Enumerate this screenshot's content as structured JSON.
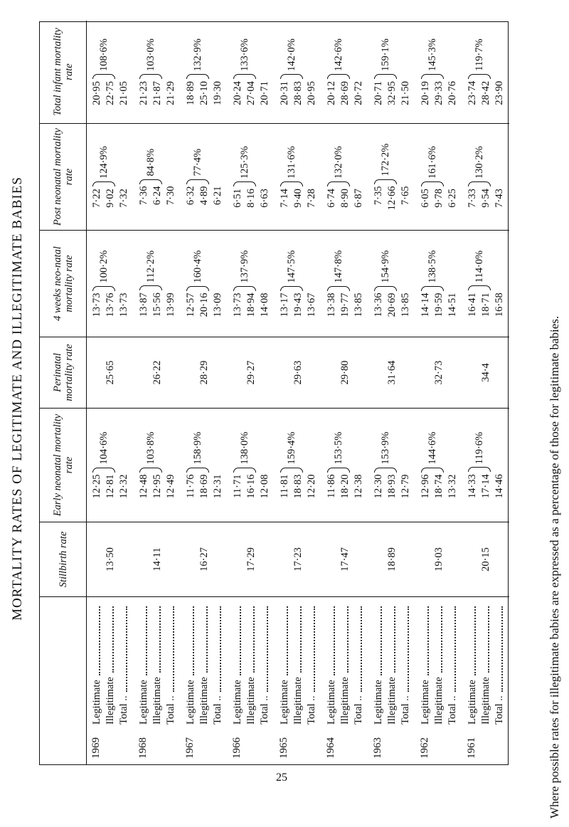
{
  "title": "MORTALITY RATES OF LEGITIMATE AND ILLEGITIMATE BABIES",
  "note": "Where possible rates for illegitimate babies are expressed as a percentage of those for legitimate babies.",
  "page_number": "25",
  "table": {
    "headers": [
      "Stillbirth rate",
      "Early neonatal mortality rate",
      "Perinatal mortality rate",
      "4 weeks neo-natal mortality rate",
      "Post neonatal mortality rate",
      "Total infant mortality rate"
    ],
    "rows": [
      {
        "year": "1969",
        "labels": [
          "Legitimate",
          "Illegitimate",
          "Total .."
        ],
        "stillbirth": "13·50",
        "early": {
          "values": [
            "12·25",
            "12·81",
            "12·32"
          ],
          "pct": "104·6%"
        },
        "perinatal": "25·65",
        "four_weeks": {
          "values": [
            "13·73",
            "13·76",
            "13·73"
          ],
          "pct": "100·2%"
        },
        "post": {
          "values": [
            "7·22",
            "9·02",
            "7·32"
          ],
          "pct": "124·9%"
        },
        "infant": {
          "values": [
            "20·95",
            "22·75",
            "21·05"
          ],
          "pct": "108·6%"
        }
      },
      {
        "year": "1968",
        "labels": [
          "Legitimate",
          "Illegitimate",
          "Total .."
        ],
        "stillbirth": "14·11",
        "early": {
          "values": [
            "12·48",
            "12·95",
            "12·49"
          ],
          "pct": "103·8%"
        },
        "perinatal": "26·22",
        "four_weeks": {
          "values": [
            "13·87",
            "15·56",
            "13·99"
          ],
          "pct": "112·2%"
        },
        "post": {
          "values": [
            "7·36",
            "6·24",
            "7·30"
          ],
          "pct": "84·8%"
        },
        "infant": {
          "values": [
            "21·23",
            "21·87",
            "21·29"
          ],
          "pct": "103·0%"
        }
      },
      {
        "year": "1967",
        "labels": [
          "Legitimate",
          "Illegitimate",
          "Total .."
        ],
        "stillbirth": "16·27",
        "early": {
          "values": [
            "11·76",
            "18·69",
            "12·31"
          ],
          "pct": "158·9%"
        },
        "perinatal": "28·29",
        "four_weeks": {
          "values": [
            "12·57",
            "20·16",
            "13·09"
          ],
          "pct": "160·4%"
        },
        "post": {
          "values": [
            "6·32",
            "4·89",
            "6·21"
          ],
          "pct": "77·4%"
        },
        "infant": {
          "values": [
            "18·89",
            "25·10",
            "19·30"
          ],
          "pct": "132·9%"
        }
      },
      {
        "year": "1966",
        "labels": [
          "Legitimate",
          "Illegitimate",
          "Total .."
        ],
        "stillbirth": "17·29",
        "early": {
          "values": [
            "11·71",
            "16·16",
            "12·08"
          ],
          "pct": "138·0%"
        },
        "perinatal": "29·27",
        "four_weeks": {
          "values": [
            "13·73",
            "18·94",
            "14·08"
          ],
          "pct": "137·9%"
        },
        "post": {
          "values": [
            "6·51",
            "8·16",
            "6·63"
          ],
          "pct": "125·3%"
        },
        "infant": {
          "values": [
            "20·24",
            "27·04",
            "20·71"
          ],
          "pct": "133·6%"
        }
      },
      {
        "year": "1965",
        "labels": [
          "Legitimate",
          "Illegitimate",
          "Total .."
        ],
        "stillbirth": "17·23",
        "early": {
          "values": [
            "11·81",
            "18·83",
            "12·20"
          ],
          "pct": "159·4%"
        },
        "perinatal": "29·63",
        "four_weeks": {
          "values": [
            "13·17",
            "19·43",
            "13·67"
          ],
          "pct": "147·5%"
        },
        "post": {
          "values": [
            "7·14",
            "9·40",
            "7·28"
          ],
          "pct": "131·6%"
        },
        "infant": {
          "values": [
            "20·31",
            "28·83",
            "20·95"
          ],
          "pct": "142·0%"
        }
      },
      {
        "year": "1964",
        "labels": [
          "Legitimate",
          "Illegitimate",
          "Total .."
        ],
        "stillbirth": "17·47",
        "early": {
          "values": [
            "11·86",
            "18·20",
            "12·38"
          ],
          "pct": "153·5%"
        },
        "perinatal": "29·80",
        "four_weeks": {
          "values": [
            "13·38",
            "19·77",
            "13·85"
          ],
          "pct": "147·8%"
        },
        "post": {
          "values": [
            "6·74",
            "8·90",
            "6·87"
          ],
          "pct": "132·0%"
        },
        "infant": {
          "values": [
            "20·12",
            "28·69",
            "20·72"
          ],
          "pct": "142·6%"
        }
      },
      {
        "year": "1963",
        "labels": [
          "Legitimate",
          "Illegitimate",
          "Total .."
        ],
        "stillbirth": "18·89",
        "early": {
          "values": [
            "12·30",
            "18·93",
            "12·79"
          ],
          "pct": "153·9%"
        },
        "perinatal": "31·64",
        "four_weeks": {
          "values": [
            "13·36",
            "20·69",
            "13·85"
          ],
          "pct": "154·9%"
        },
        "post": {
          "values": [
            "7·35",
            "12·66",
            "7·65"
          ],
          "pct": "172·2%"
        },
        "infant": {
          "values": [
            "20·71",
            "32·95",
            "21·50"
          ],
          "pct": "159·1%"
        }
      },
      {
        "year": "1962",
        "labels": [
          "Legitimate",
          "Illegitimate",
          "Total .."
        ],
        "stillbirth": "19·03",
        "early": {
          "values": [
            "12·96",
            "18·74",
            "13·32"
          ],
          "pct": "144·6%"
        },
        "perinatal": "32·73",
        "four_weeks": {
          "values": [
            "14·14",
            "19·59",
            "14·51"
          ],
          "pct": "138·5%"
        },
        "post": {
          "values": [
            "6·05",
            "9·78",
            "6·25"
          ],
          "pct": "161·6%"
        },
        "infant": {
          "values": [
            "20·19",
            "29·33",
            "20·76"
          ],
          "pct": "145·3%"
        }
      },
      {
        "year": "1961",
        "labels": [
          "Legitimate",
          "Illegitimate",
          "Total .."
        ],
        "stillbirth": "20·15",
        "early": {
          "values": [
            "14·33",
            "17·14",
            "14·46"
          ],
          "pct": "119·6%"
        },
        "perinatal": "34·4",
        "four_weeks": {
          "values": [
            "16·41",
            "18·71",
            "16·58"
          ],
          "pct": "114·0%"
        },
        "post": {
          "values": [
            "7·33",
            "9·54",
            "7·43"
          ],
          "pct": "130·2%"
        },
        "infant": {
          "values": [
            "23·74",
            "28·42",
            "23·90"
          ],
          "pct": "119·7%"
        }
      }
    ]
  }
}
